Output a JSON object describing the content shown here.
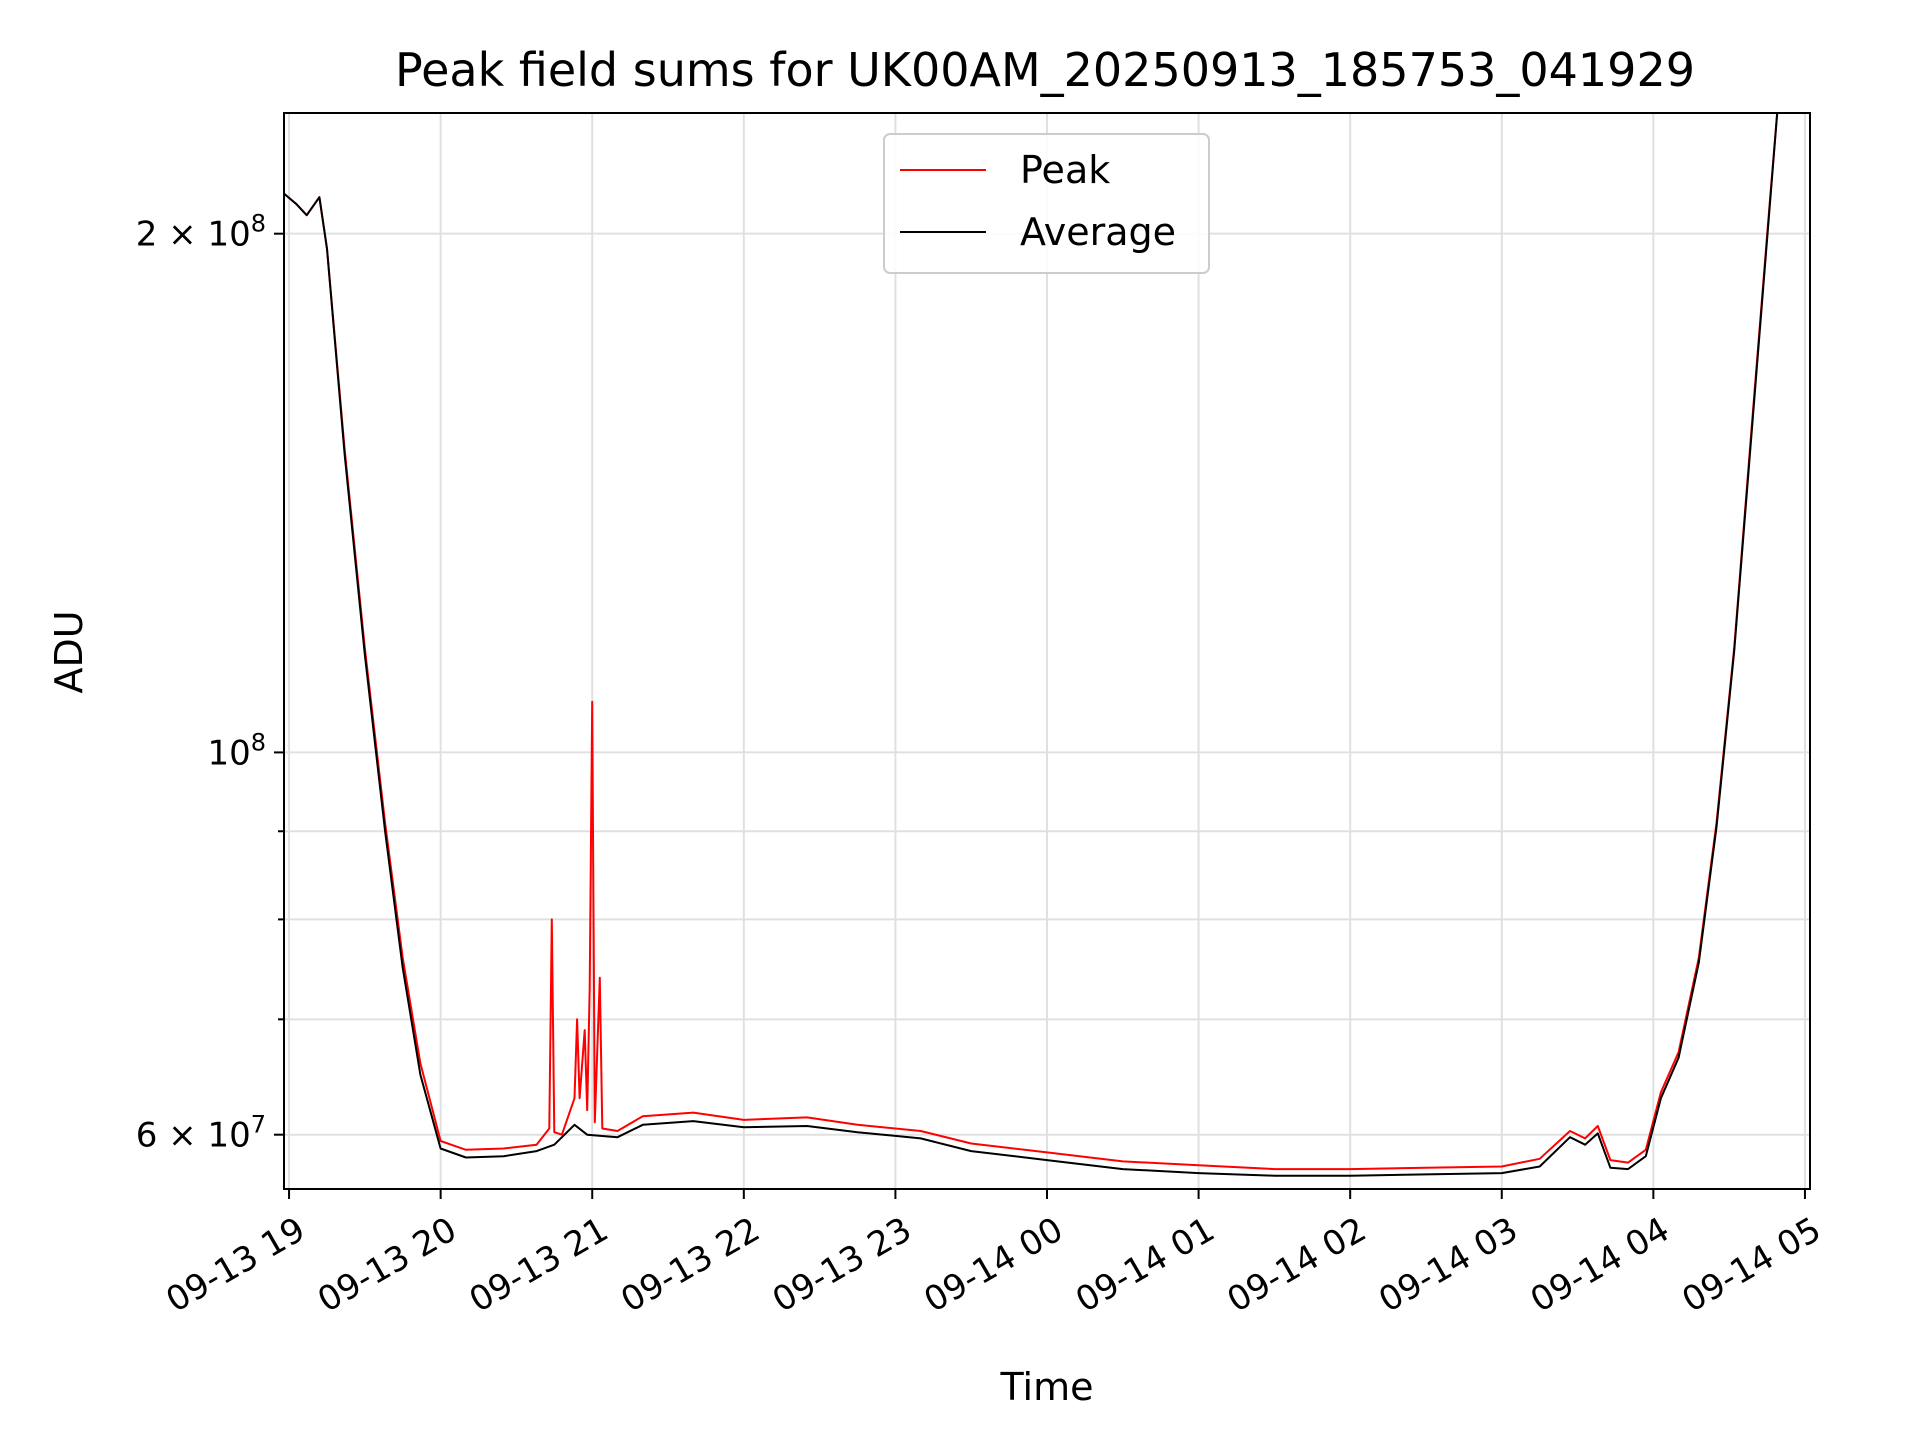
{
  "chart_data": {
    "type": "line",
    "title": "Peak field sums for UK00AM_20250913_185753_041929",
    "xlabel": "Time",
    "ylabel": "ADU",
    "yscale": "log",
    "grid": true,
    "legend_position": "top-center",
    "xlim": [
      "2025-09-13 18:58",
      "2025-09-14 05:02"
    ],
    "ylim": [
      55800000,
      235000000
    ],
    "x_ticks": [
      "09-13 19",
      "09-13 20",
      "09-13 21",
      "09-13 22",
      "09-13 23",
      "09-14 00",
      "09-14 01",
      "09-14 02",
      "09-14 03",
      "09-14 04",
      "09-14 05"
    ],
    "y_ticks": [
      {
        "value": 60000000,
        "base": "6 × 10",
        "exp": "7"
      },
      {
        "value": 100000000,
        "base": "10",
        "exp": "8"
      },
      {
        "value": 200000000,
        "base": "2 × 10",
        "exp": "8"
      }
    ],
    "series": [
      {
        "name": "Peak",
        "color": "#ff0000",
        "points": [
          [
            "2025-09-13 18:58",
            211000000
          ],
          [
            "2025-09-13 19:03",
            208000000
          ],
          [
            "2025-09-13 19:07",
            205000000
          ],
          [
            "2025-09-13 19:12",
            210000000
          ],
          [
            "2025-09-13 19:15",
            196000000
          ],
          [
            "2025-09-13 19:22",
            150000000
          ],
          [
            "2025-09-13 19:30",
            115000000
          ],
          [
            "2025-09-13 19:38",
            91000000
          ],
          [
            "2025-09-13 19:45",
            76000000
          ],
          [
            "2025-09-13 19:52",
            66000000
          ],
          [
            "2025-09-13 20:00",
            59500000
          ],
          [
            "2025-09-13 20:10",
            58800000
          ],
          [
            "2025-09-13 20:25",
            58900000
          ],
          [
            "2025-09-13 20:38",
            59200000
          ],
          [
            "2025-09-13 20:43",
            60500000
          ],
          [
            "2025-09-13 20:44",
            80000000
          ],
          [
            "2025-09-13 20:45",
            60200000
          ],
          [
            "2025-09-13 20:48",
            60000000
          ],
          [
            "2025-09-13 20:53",
            63000000
          ],
          [
            "2025-09-13 20:54",
            70000000
          ],
          [
            "2025-09-13 20:55",
            63000000
          ],
          [
            "2025-09-13 20:57",
            69000000
          ],
          [
            "2025-09-13 20:58",
            62000000
          ],
          [
            "2025-09-13 20:59",
            73000000
          ],
          [
            "2025-09-13 21:00",
            107000000
          ],
          [
            "2025-09-13 21:01",
            61000000
          ],
          [
            "2025-09-13 21:03",
            74000000
          ],
          [
            "2025-09-13 21:04",
            60500000
          ],
          [
            "2025-09-13 21:10",
            60300000
          ],
          [
            "2025-09-13 21:20",
            61500000
          ],
          [
            "2025-09-13 21:40",
            61800000
          ],
          [
            "2025-09-13 22:00",
            61200000
          ],
          [
            "2025-09-13 22:25",
            61400000
          ],
          [
            "2025-09-13 22:45",
            60800000
          ],
          [
            "2025-09-13 23:10",
            60300000
          ],
          [
            "2025-09-13 23:30",
            59300000
          ],
          [
            "2025-09-14 00:00",
            58600000
          ],
          [
            "2025-09-14 00:30",
            57900000
          ],
          [
            "2025-09-14 01:00",
            57600000
          ],
          [
            "2025-09-14 01:30",
            57300000
          ],
          [
            "2025-09-14 02:00",
            57300000
          ],
          [
            "2025-09-14 02:30",
            57400000
          ],
          [
            "2025-09-14 03:00",
            57500000
          ],
          [
            "2025-09-14 03:15",
            58100000
          ],
          [
            "2025-09-14 03:27",
            60300000
          ],
          [
            "2025-09-14 03:33",
            59700000
          ],
          [
            "2025-09-14 03:38",
            60700000
          ],
          [
            "2025-09-14 03:43",
            58000000
          ],
          [
            "2025-09-14 03:50",
            57800000
          ],
          [
            "2025-09-14 03:57",
            58800000
          ],
          [
            "2025-09-14 04:03",
            63500000
          ],
          [
            "2025-09-14 04:10",
            67000000
          ],
          [
            "2025-09-14 04:18",
            76000000
          ],
          [
            "2025-09-14 04:25",
            91000000
          ],
          [
            "2025-09-14 04:32",
            115000000
          ],
          [
            "2025-09-14 04:39",
            155000000
          ],
          [
            "2025-09-14 04:46",
            208000000
          ],
          [
            "2025-09-14 04:49",
            235000000
          ]
        ]
      },
      {
        "name": "Average",
        "color": "#000000",
        "points": [
          [
            "2025-09-13 18:58",
            211000000
          ],
          [
            "2025-09-13 19:03",
            208000000
          ],
          [
            "2025-09-13 19:07",
            205000000
          ],
          [
            "2025-09-13 19:12",
            210000000
          ],
          [
            "2025-09-13 19:15",
            196000000
          ],
          [
            "2025-09-13 19:22",
            149000000
          ],
          [
            "2025-09-13 19:30",
            114000000
          ],
          [
            "2025-09-13 19:38",
            90000000
          ],
          [
            "2025-09-13 19:45",
            75000000
          ],
          [
            "2025-09-13 19:52",
            65000000
          ],
          [
            "2025-09-13 20:00",
            58900000
          ],
          [
            "2025-09-13 20:10",
            58200000
          ],
          [
            "2025-09-13 20:25",
            58300000
          ],
          [
            "2025-09-13 20:38",
            58700000
          ],
          [
            "2025-09-13 20:45",
            59200000
          ],
          [
            "2025-09-13 20:53",
            60800000
          ],
          [
            "2025-09-13 20:58",
            60000000
          ],
          [
            "2025-09-13 21:10",
            59800000
          ],
          [
            "2025-09-13 21:20",
            60800000
          ],
          [
            "2025-09-13 21:40",
            61100000
          ],
          [
            "2025-09-13 22:00",
            60600000
          ],
          [
            "2025-09-13 22:25",
            60700000
          ],
          [
            "2025-09-13 22:45",
            60200000
          ],
          [
            "2025-09-13 23:10",
            59700000
          ],
          [
            "2025-09-13 23:30",
            58700000
          ],
          [
            "2025-09-14 00:00",
            58000000
          ],
          [
            "2025-09-14 00:30",
            57300000
          ],
          [
            "2025-09-14 01:00",
            57000000
          ],
          [
            "2025-09-14 01:30",
            56800000
          ],
          [
            "2025-09-14 02:00",
            56800000
          ],
          [
            "2025-09-14 02:30",
            56900000
          ],
          [
            "2025-09-14 03:00",
            57000000
          ],
          [
            "2025-09-14 03:15",
            57500000
          ],
          [
            "2025-09-14 03:27",
            59800000
          ],
          [
            "2025-09-14 03:33",
            59200000
          ],
          [
            "2025-09-14 03:38",
            60100000
          ],
          [
            "2025-09-14 03:43",
            57400000
          ],
          [
            "2025-09-14 03:50",
            57300000
          ],
          [
            "2025-09-14 03:57",
            58300000
          ],
          [
            "2025-09-14 04:03",
            63000000
          ],
          [
            "2025-09-14 04:10",
            66500000
          ],
          [
            "2025-09-14 04:18",
            75500000
          ],
          [
            "2025-09-14 04:25",
            90500000
          ],
          [
            "2025-09-14 04:32",
            114500000
          ],
          [
            "2025-09-14 04:39",
            154000000
          ],
          [
            "2025-09-14 04:46",
            207000000
          ],
          [
            "2025-09-14 04:49",
            235000000
          ]
        ]
      }
    ]
  }
}
